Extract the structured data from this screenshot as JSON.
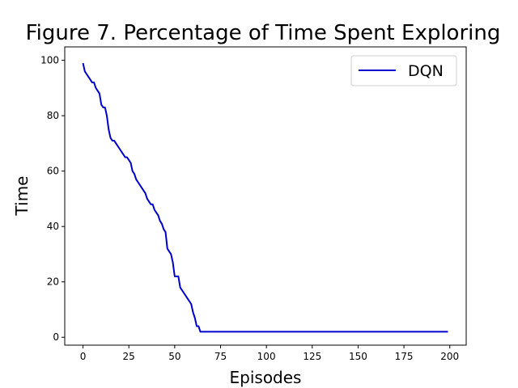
{
  "chart_data": {
    "type": "line",
    "title": "Figure 7. Percentage of Time Spent Exploring",
    "xlabel": "Episodes",
    "ylabel": "Time",
    "xlim": [
      -9.95,
      208.95
    ],
    "ylim": [
      -2.85,
      104.85
    ],
    "xticks": [
      0,
      25,
      50,
      75,
      100,
      125,
      150,
      175,
      200
    ],
    "yticks": [
      0,
      20,
      40,
      60,
      80,
      100
    ],
    "grid": false,
    "legend_position": "top-right",
    "series": [
      {
        "name": "DQN",
        "color": "#0000cc",
        "x": [
          0,
          1,
          2,
          3,
          4,
          5,
          6,
          7,
          8,
          9,
          10,
          11,
          12,
          13,
          14,
          15,
          16,
          17,
          18,
          19,
          20,
          21,
          22,
          23,
          24,
          25,
          26,
          27,
          28,
          29,
          30,
          31,
          32,
          33,
          34,
          35,
          36,
          37,
          38,
          39,
          40,
          41,
          42,
          43,
          44,
          45,
          46,
          47,
          48,
          49,
          50,
          51,
          52,
          53,
          54,
          55,
          56,
          57,
          58,
          59,
          60,
          61,
          62,
          63,
          64,
          65,
          66,
          67,
          70,
          80,
          100,
          125,
          150,
          175,
          199
        ],
        "y": [
          99,
          96,
          95,
          94,
          93,
          92,
          92,
          90,
          89,
          88,
          84,
          83,
          83,
          80,
          75,
          72,
          71,
          71,
          70,
          69,
          68,
          67,
          66,
          65,
          65,
          64,
          63,
          60,
          59,
          57,
          56,
          55,
          54,
          53,
          52,
          50,
          49,
          48,
          48,
          46,
          45,
          44,
          42,
          41,
          39,
          38,
          32,
          31,
          30,
          27,
          22,
          22,
          22,
          18,
          17,
          16,
          15,
          14,
          13,
          12,
          9,
          7,
          4,
          4,
          2,
          2,
          2,
          2,
          2,
          2,
          2,
          2,
          2,
          2,
          2
        ]
      }
    ]
  }
}
